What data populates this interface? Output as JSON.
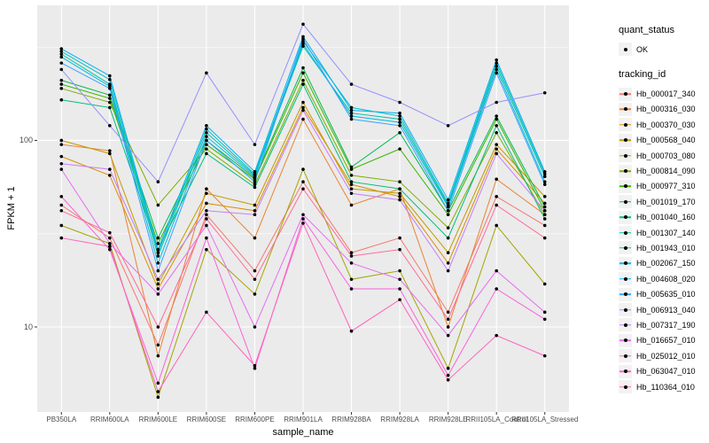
{
  "figure": {
    "kind": "ggplot-line-point-plot",
    "background": "#FFFFFF"
  },
  "axes": {
    "x_title": "sample_name",
    "y_title": "FPKM + 1"
  },
  "legend": {
    "quant_status": {
      "title": "quant_status",
      "items": [
        {
          "label": "OK",
          "glyph": "black-point"
        }
      ]
    },
    "tracking_id": {
      "title": "tracking_id"
    }
  },
  "chart_data": {
    "type": "line",
    "title": "",
    "xlabel": "sample_name",
    "ylabel": "FPKM + 1",
    "y_scale": "log10",
    "ylim": [
      3.5,
      530
    ],
    "grid": true,
    "legend_position": "right",
    "point_color": "#000000",
    "colors": {
      "panel_bg": "#EBEBEB",
      "grid": "#FFFFFF",
      "tick": "#333333",
      "tick_text": "#4D4D4D",
      "legend_key_bg": "#F2F2F2"
    },
    "y_major_ticks": [
      {
        "value": 10,
        "label": "10"
      },
      {
        "value": 100,
        "label": "100"
      }
    ],
    "y_minor_ticks": [
      31.6,
      316
    ],
    "categories": [
      "PB350LA",
      "RRIM600LA",
      "RRIM600LE",
      "RRIM600SE",
      "RRIM600PE",
      "RRIM901LA",
      "RRIM928BA",
      "RRIM928LA",
      "RRIM928LE",
      "RRII105LA_Control",
      "RRII105LA_Stressed"
    ],
    "series": [
      {
        "name": "Hb_000017_340",
        "color": "#F8766D",
        "values": [
          45,
          30,
          8,
          40,
          20,
          60,
          25,
          30,
          12,
          50,
          35
        ]
      },
      {
        "name": "Hb_000316_030",
        "color": "#EA8331",
        "values": [
          95,
          88,
          7,
          55,
          30,
          130,
          45,
          55,
          10,
          62,
          40
        ]
      },
      {
        "name": "Hb_000370_030",
        "color": "#D89000",
        "values": [
          82,
          65,
          16,
          46,
          42,
          150,
          58,
          50,
          22,
          90,
          46
        ]
      },
      {
        "name": "Hb_000568_040",
        "color": "#C09B00",
        "values": [
          100,
          85,
          17,
          52,
          45,
          160,
          55,
          52,
          25,
          95,
          50
        ]
      },
      {
        "name": "Hb_000703_080",
        "color": "#A3A500",
        "values": [
          35,
          28,
          4.2,
          26,
          15,
          70,
          18,
          20,
          6,
          35,
          17
        ]
      },
      {
        "name": "Hb_000814_090",
        "color": "#7CAE00",
        "values": [
          190,
          160,
          45,
          90,
          58,
          210,
          65,
          60,
          34,
          110,
          40
        ]
      },
      {
        "name": "Hb_000977_310",
        "color": "#39B600",
        "values": [
          200,
          168,
          28,
          95,
          62,
          230,
          70,
          90,
          40,
          130,
          42
        ]
      },
      {
        "name": "Hb_001019_170",
        "color": "#00BB4E",
        "values": [
          210,
          175,
          30,
          100,
          63,
          245,
          72,
          110,
          42,
          135,
          44
        ]
      },
      {
        "name": "Hb_001040_160",
        "color": "#00BF7D",
        "values": [
          165,
          150,
          26,
          85,
          56,
          200,
          60,
          55,
          30,
          120,
          38
        ]
      },
      {
        "name": "Hb_001307_140",
        "color": "#00C1A3",
        "values": [
          290,
          200,
          24,
          110,
          65,
          320,
          140,
          130,
          45,
          250,
          64
        ]
      },
      {
        "name": "Hb_001943_010",
        "color": "#00BFC4",
        "values": [
          300,
          212,
          25,
          115,
          66,
          340,
          150,
          135,
          46,
          260,
          66
        ]
      },
      {
        "name": "Hb_002067_150",
        "color": "#00BAE0",
        "values": [
          280,
          195,
          22,
          105,
          64,
          330,
          135,
          125,
          44,
          240,
          60
        ]
      },
      {
        "name": "Hb_004608_020",
        "color": "#00B0F6",
        "values": [
          310,
          222,
          26,
          120,
          68,
          360,
          145,
          140,
          48,
          270,
          68
        ]
      },
      {
        "name": "Hb_005635_010",
        "color": "#35A2FF",
        "values": [
          260,
          190,
          20,
          100,
          60,
          350,
          130,
          120,
          42,
          230,
          58
        ]
      },
      {
        "name": "Hb_006913_040",
        "color": "#9590FF",
        "values": [
          240,
          120,
          60,
          230,
          95,
          420,
          200,
          160,
          120,
          160,
          180
        ]
      },
      {
        "name": "Hb_007317_190",
        "color": "#C77CFF",
        "values": [
          75,
          70,
          18,
          42,
          40,
          145,
          52,
          48,
          20,
          85,
          42
        ]
      },
      {
        "name": "Hb_016657_010",
        "color": "#E76BF3",
        "values": [
          70,
          28,
          15,
          35,
          10,
          40,
          22,
          18,
          9,
          20,
          12
        ]
      },
      {
        "name": "Hb_025012_010",
        "color": "#FA62DB",
        "values": [
          50,
          26,
          5,
          30,
          6,
          38,
          16,
          16,
          5.5,
          16,
          11
        ]
      },
      {
        "name": "Hb_063047_010",
        "color": "#FF62BC",
        "values": [
          30,
          27,
          4.5,
          12,
          6.2,
          36,
          9.5,
          14,
          5.2,
          9,
          7
        ]
      },
      {
        "name": "Hb_110364_010",
        "color": "#FF6A98",
        "values": [
          42,
          32,
          10,
          38,
          18,
          55,
          24,
          26,
          11,
          45,
          30
        ]
      }
    ]
  }
}
